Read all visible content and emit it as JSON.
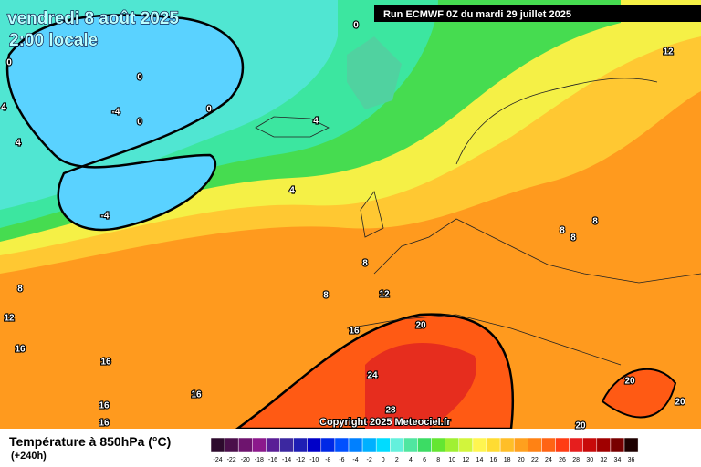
{
  "header": {
    "date": "vendredi 8 août 2025",
    "time": "2:00 locale",
    "run": "Run ECMWF 0Z du mardi 29 juillet 2025"
  },
  "copyright": "Copyright 2025 Meteociel.fr",
  "contour_labels": [
    0,
    0,
    -4,
    0,
    0,
    4,
    4,
    -4,
    4,
    4,
    0,
    12,
    8,
    8,
    8,
    8,
    8,
    12,
    8,
    12,
    16,
    20,
    16,
    16,
    24,
    28,
    16,
    16,
    16,
    20,
    20,
    20
  ],
  "legend": {
    "title": "Température à 850hPa (°C)",
    "lead": "(+240h)",
    "ticks": [
      -24,
      -22,
      -20,
      -18,
      -16,
      -14,
      -12,
      -10,
      -8,
      -6,
      -4,
      -2,
      0,
      2,
      4,
      6,
      8,
      10,
      12,
      14,
      16,
      18,
      20,
      22,
      24,
      26,
      28,
      30,
      32,
      34,
      36
    ],
    "colors": [
      "#2d0a2d",
      "#4b0f4b",
      "#6e146e",
      "#8c198c",
      "#5a1e96",
      "#3c28a0",
      "#1e1eb4",
      "#0000c8",
      "#0028e6",
      "#0050ff",
      "#0080ff",
      "#00b0ff",
      "#00dcff",
      "#64f0dc",
      "#50e6a0",
      "#3cdc64",
      "#64e632",
      "#a0f032",
      "#d2f53c",
      "#fff550",
      "#ffdc32",
      "#ffbe28",
      "#ffa01e",
      "#ff8214",
      "#ff6414",
      "#ff3c14",
      "#e61e1e",
      "#c80a0a",
      "#a00000",
      "#780000",
      "#1e0000"
    ]
  }
}
